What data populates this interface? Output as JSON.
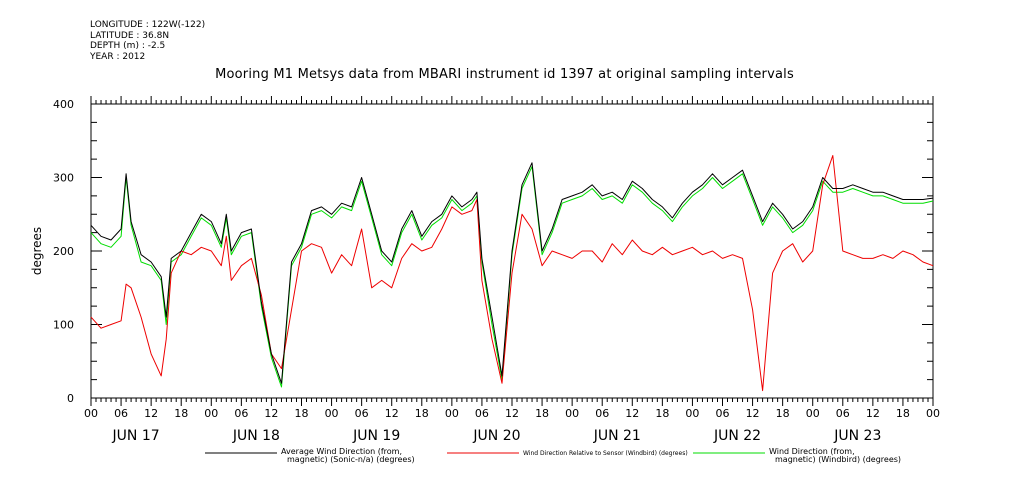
{
  "header": {
    "longitude": "LONGITUDE : 122W(-122)",
    "latitude": "LATITUDE : 36.8N",
    "depth": "DEPTH (m) : -2.5",
    "year": "YEAR : 2012"
  },
  "chart_data": {
    "type": "line",
    "title": "Mooring M1 Metsys data from MBARI instrument id 1397 at original sampling intervals",
    "ylabel": "degrees",
    "ylim": [
      0,
      400
    ],
    "yticks": [
      0,
      100,
      200,
      300,
      400
    ],
    "xlim": [
      0,
      168
    ],
    "x_units": "hours since JUN 17 00:00",
    "xtick_labels": [
      "00",
      "06",
      "12",
      "18",
      "00",
      "06",
      "12",
      "18",
      "00",
      "06",
      "12",
      "18",
      "00",
      "06",
      "12",
      "18",
      "00",
      "06",
      "12",
      "18",
      "00",
      "06",
      "12",
      "18",
      "00",
      "06",
      "12",
      "18",
      "00"
    ],
    "day_labels": [
      "JUN 17",
      "JUN 18",
      "JUN 19",
      "JUN 20",
      "JUN 21",
      "JUN 22",
      "JUN 23"
    ],
    "grid": false,
    "legend_position": "bottom",
    "series": [
      {
        "name_lines": [
          "Average Wind Direction (from,",
          "magnetic) (Sonic-n/a) (degrees)"
        ],
        "color": "#000000",
        "x": [
          0,
          2,
          4,
          6,
          7,
          8,
          10,
          12,
          14,
          15,
          16,
          18,
          20,
          22,
          24,
          26,
          27,
          28,
          30,
          32,
          34,
          36,
          38,
          40,
          42,
          44,
          46,
          48,
          50,
          52,
          54,
          56,
          58,
          60,
          62,
          64,
          66,
          68,
          70,
          72,
          74,
          76,
          77,
          78,
          80,
          82,
          84,
          86,
          88,
          90,
          92,
          94,
          96,
          98,
          100,
          102,
          104,
          106,
          108,
          110,
          112,
          114,
          116,
          118,
          120,
          122,
          124,
          126,
          128,
          130,
          132,
          134,
          136,
          138,
          140,
          142,
          144,
          146,
          148,
          150,
          152,
          154,
          156,
          158,
          160,
          162,
          164,
          166,
          168
        ],
        "values": [
          235,
          220,
          215,
          230,
          305,
          240,
          195,
          185,
          165,
          110,
          190,
          200,
          225,
          250,
          240,
          210,
          250,
          200,
          225,
          230,
          130,
          60,
          20,
          185,
          210,
          255,
          260,
          250,
          265,
          260,
          300,
          250,
          200,
          185,
          230,
          255,
          220,
          240,
          250,
          275,
          260,
          270,
          280,
          190,
          110,
          30,
          200,
          290,
          320,
          200,
          230,
          270,
          275,
          280,
          290,
          275,
          280,
          270,
          295,
          285,
          270,
          260,
          245,
          265,
          280,
          290,
          305,
          290,
          300,
          310,
          275,
          240,
          265,
          250,
          230,
          240,
          260,
          300,
          285,
          285,
          290,
          285,
          280,
          280,
          275,
          270,
          270,
          270,
          272
        ]
      },
      {
        "name_lines": [
          "Wind Direction Relative to Sensor (Windbird) (degrees)"
        ],
        "color": "#ee0000",
        "x": [
          0,
          2,
          4,
          6,
          7,
          8,
          10,
          12,
          14,
          15,
          16,
          18,
          20,
          22,
          24,
          26,
          27,
          28,
          30,
          32,
          34,
          36,
          38,
          40,
          42,
          44,
          46,
          48,
          50,
          52,
          54,
          56,
          58,
          60,
          62,
          64,
          66,
          68,
          70,
          72,
          74,
          76,
          77,
          78,
          80,
          82,
          84,
          86,
          88,
          90,
          92,
          94,
          96,
          98,
          100,
          102,
          104,
          106,
          108,
          110,
          112,
          114,
          116,
          118,
          120,
          122,
          124,
          126,
          128,
          130,
          132,
          134,
          136,
          138,
          140,
          142,
          144,
          146,
          148,
          150,
          152,
          154,
          156,
          158,
          160,
          162,
          164,
          166,
          168
        ],
        "values": [
          110,
          95,
          100,
          105,
          155,
          150,
          110,
          60,
          30,
          80,
          170,
          200,
          195,
          205,
          200,
          180,
          220,
          160,
          180,
          190,
          140,
          60,
          40,
          120,
          200,
          210,
          205,
          170,
          195,
          180,
          230,
          150,
          160,
          150,
          190,
          210,
          200,
          205,
          230,
          260,
          250,
          255,
          270,
          160,
          80,
          20,
          170,
          250,
          230,
          180,
          200,
          195,
          190,
          200,
          200,
          185,
          210,
          195,
          215,
          200,
          195,
          205,
          195,
          200,
          205,
          195,
          200,
          190,
          195,
          190,
          120,
          10,
          170,
          200,
          210,
          185,
          200,
          290,
          330,
          200,
          195,
          190,
          190,
          195,
          190,
          200,
          195,
          185,
          180
        ]
      },
      {
        "name_lines": [
          "Wind Direction (from,",
          "magnetic) (Windbird) (degrees)"
        ],
        "color": "#00dd00",
        "x": [
          0,
          2,
          4,
          6,
          7,
          8,
          10,
          12,
          14,
          15,
          16,
          18,
          20,
          22,
          24,
          26,
          27,
          28,
          30,
          32,
          34,
          36,
          38,
          40,
          42,
          44,
          46,
          48,
          50,
          52,
          54,
          56,
          58,
          60,
          62,
          64,
          66,
          68,
          70,
          72,
          74,
          76,
          77,
          78,
          80,
          82,
          84,
          86,
          88,
          90,
          92,
          94,
          96,
          98,
          100,
          102,
          104,
          106,
          108,
          110,
          112,
          114,
          116,
          118,
          120,
          122,
          124,
          126,
          128,
          130,
          132,
          134,
          136,
          138,
          140,
          142,
          144,
          146,
          148,
          150,
          152,
          154,
          156,
          158,
          160,
          162,
          164,
          166,
          168
        ],
        "values": [
          225,
          210,
          205,
          220,
          300,
          235,
          185,
          180,
          160,
          100,
          185,
          195,
          220,
          245,
          235,
          205,
          245,
          195,
          220,
          225,
          125,
          55,
          15,
          180,
          205,
          250,
          255,
          245,
          260,
          255,
          295,
          245,
          195,
          180,
          225,
          250,
          215,
          235,
          245,
          270,
          255,
          265,
          275,
          185,
          100,
          25,
          195,
          285,
          315,
          195,
          225,
          265,
          270,
          275,
          285,
          270,
          275,
          265,
          290,
          280,
          265,
          255,
          240,
          260,
          275,
          285,
          300,
          285,
          295,
          305,
          270,
          235,
          260,
          245,
          225,
          235,
          255,
          295,
          280,
          280,
          285,
          280,
          275,
          275,
          270,
          265,
          265,
          265,
          268
        ]
      }
    ]
  }
}
